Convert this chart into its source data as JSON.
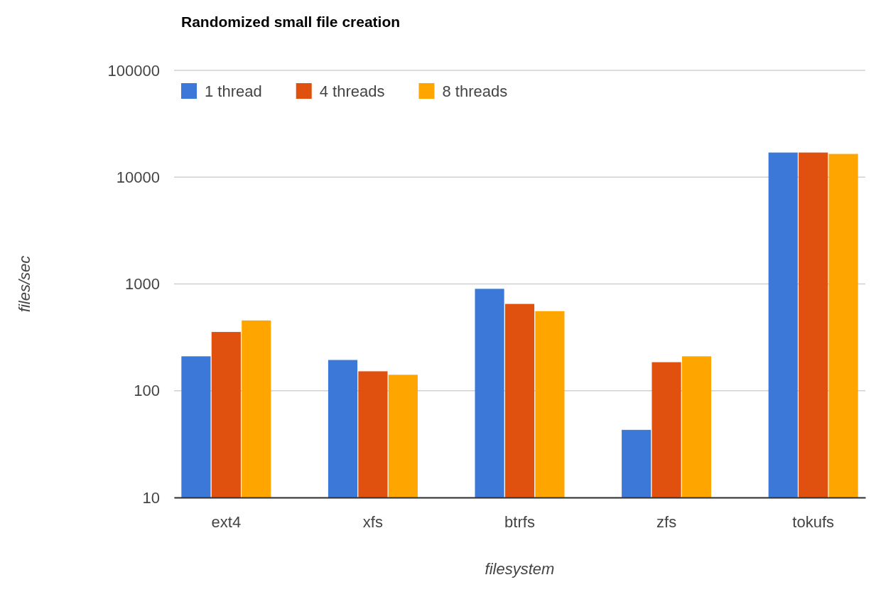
{
  "chart_data": {
    "type": "bar",
    "title": "Randomized small file creation",
    "xlabel": "filesystem",
    "ylabel": "files/sec",
    "categories": [
      "ext4",
      "xfs",
      "btrfs",
      "zfs",
      "tokufs"
    ],
    "series": [
      {
        "name": "1 thread",
        "color": "#3c78d8",
        "values": [
          210,
          194,
          900,
          43,
          17000
        ]
      },
      {
        "name": "4 threads",
        "color": "#e0500f",
        "values": [
          355,
          152,
          650,
          185,
          17000
        ]
      },
      {
        "name": "8 threads",
        "color": "#fea500",
        "values": [
          455,
          141,
          556,
          210,
          16500
        ]
      }
    ],
    "log": true,
    "ylim": [
      10,
      100000
    ],
    "yticks": [
      10,
      100,
      1000,
      10000,
      100000
    ],
    "grid": "y",
    "legend": "top left"
  }
}
